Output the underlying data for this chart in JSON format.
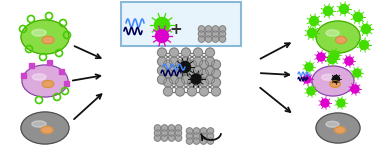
{
  "bg_color": "#ffffff",
  "box_color": "#8ab8d8",
  "box_fill": "#e8f4fb",
  "cell_green_color": "#88dd44",
  "cell_green_edge": "#44aa00",
  "cell_purple_color": "#ddaadd",
  "cell_purple_edge": "#8844aa",
  "cell_dark_color": "#909090",
  "cell_dark_edge": "#505050",
  "nucleus_color": "#e8a060",
  "bp_node_color": "#aaaaaa",
  "bp_node_edge": "#707070",
  "bp_edge_color": "#707070",
  "quenched_dot_color": "#111111",
  "green_dot_color": "#44dd00",
  "magenta_dot_color": "#dd00cc",
  "blue_wave_color": "#4488ff",
  "dark_wave_color": "#000055",
  "arrow_color": "#111111",
  "square_color": "#cc44cc",
  "circle_receptor_color": "#44cc00",
  "figsize": [
    3.78,
    1.63
  ],
  "dpi": 100
}
